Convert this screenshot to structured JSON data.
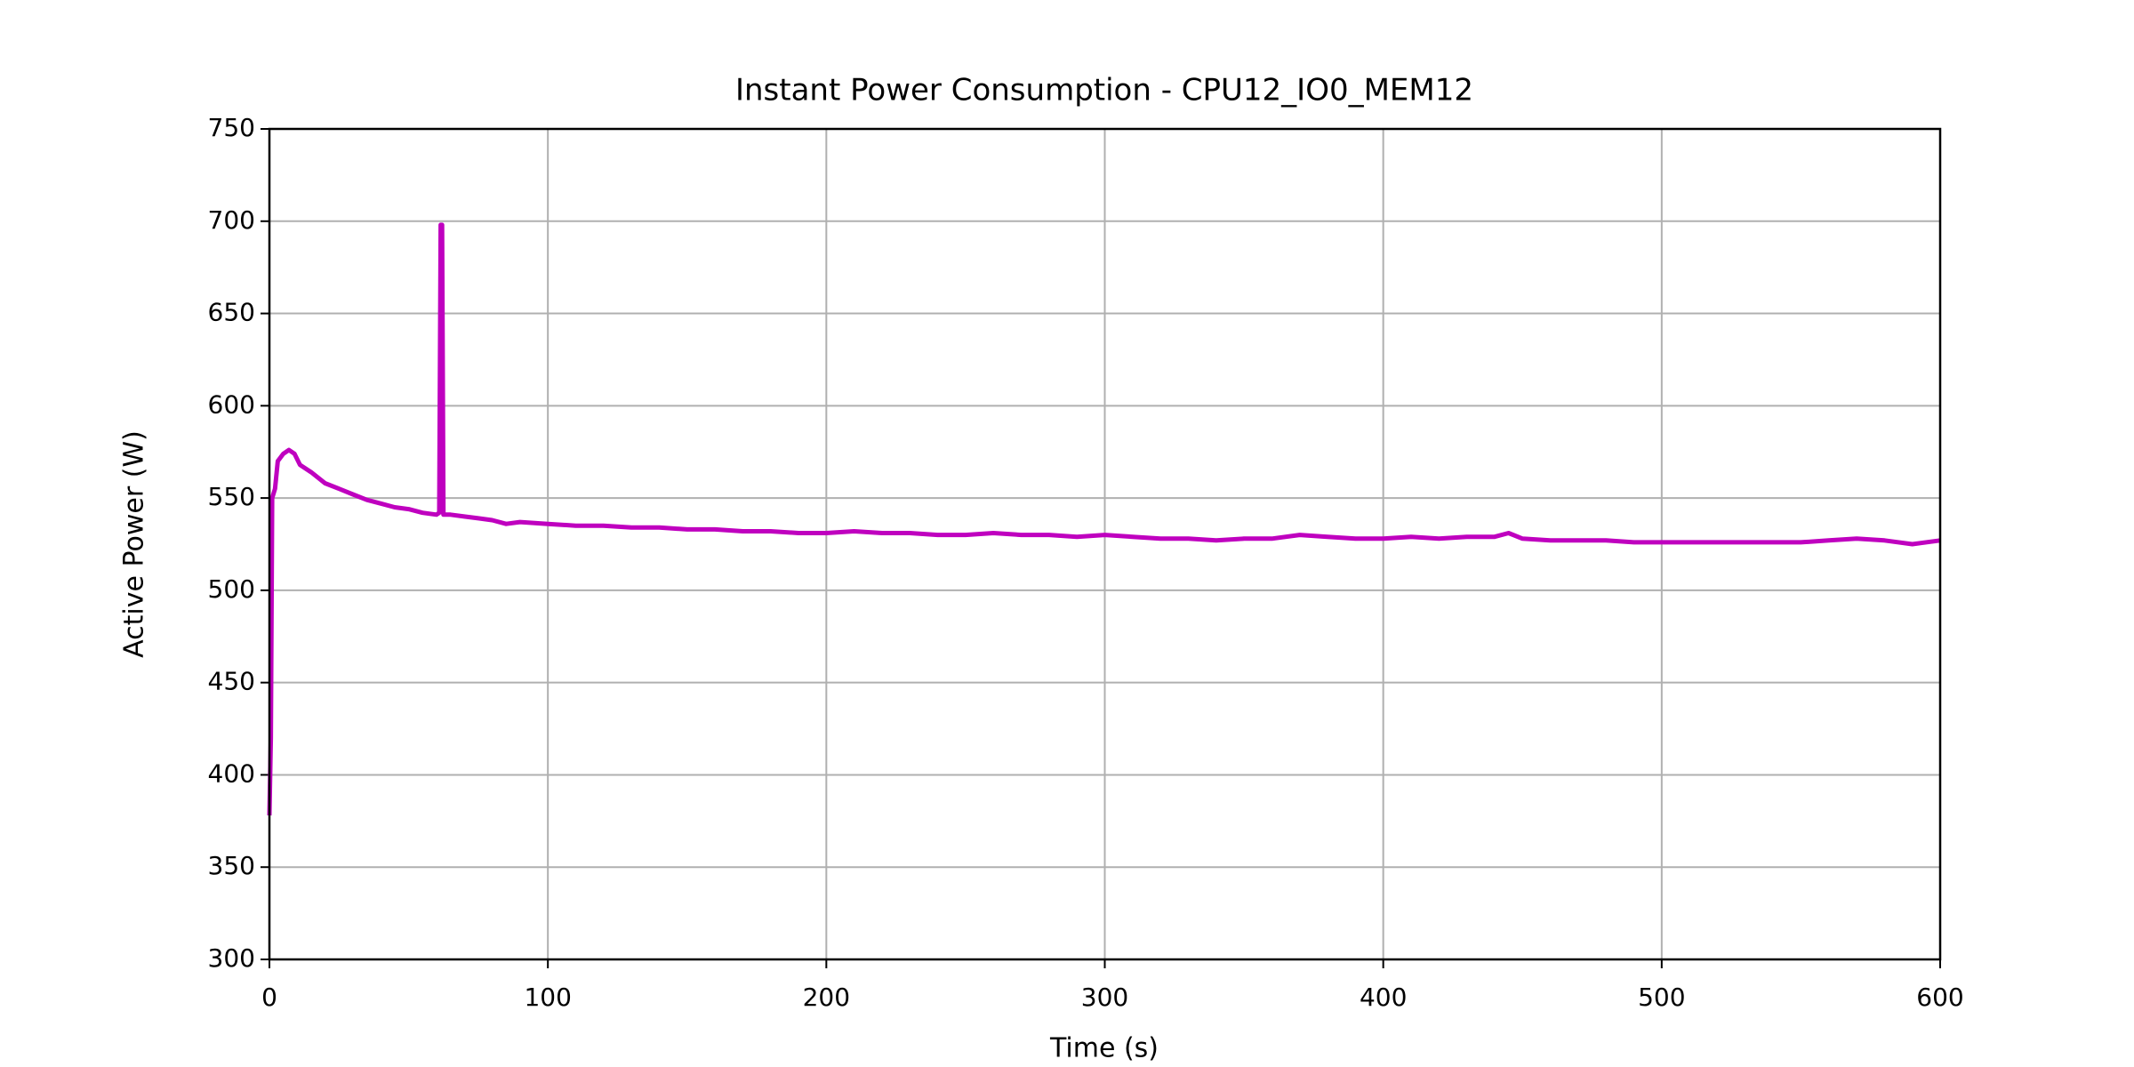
{
  "chart_data": {
    "type": "line",
    "title": "Instant Power Consumption - CPU12_IO0_MEM12",
    "xlabel": "Time (s)",
    "ylabel": "Active Power (W)",
    "x": [
      0,
      0.5,
      1,
      2,
      3,
      5,
      7,
      9,
      11,
      15,
      20,
      25,
      30,
      35,
      40,
      45,
      50,
      55,
      60,
      61,
      61.5,
      62,
      62.5,
      65,
      70,
      75,
      80,
      85,
      90,
      100,
      110,
      120,
      130,
      140,
      150,
      160,
      170,
      180,
      190,
      200,
      210,
      220,
      230,
      240,
      250,
      260,
      270,
      280,
      290,
      300,
      310,
      320,
      330,
      340,
      350,
      360,
      370,
      380,
      390,
      400,
      410,
      420,
      430,
      440,
      445,
      450,
      460,
      470,
      480,
      490,
      500,
      510,
      520,
      530,
      540,
      550,
      560,
      570,
      580,
      590,
      600
    ],
    "values": [
      378,
      420,
      550,
      555,
      570,
      574,
      576,
      574,
      568,
      564,
      558,
      555,
      552,
      549,
      547,
      545,
      544,
      542,
      541,
      542,
      698,
      698,
      541,
      541,
      540,
      539,
      538,
      536,
      537,
      536,
      535,
      535,
      534,
      534,
      533,
      533,
      532,
      532,
      531,
      531,
      532,
      531,
      531,
      530,
      530,
      531,
      530,
      530,
      529,
      530,
      529,
      528,
      528,
      527,
      528,
      528,
      530,
      529,
      528,
      528,
      529,
      528,
      529,
      529,
      531,
      528,
      527,
      527,
      527,
      526,
      526,
      526,
      526,
      526,
      526,
      526,
      527,
      528,
      527,
      525,
      527
    ],
    "color": "#bf00bf",
    "xlim": [
      0,
      600
    ],
    "xticks": [
      0,
      100,
      200,
      300,
      400,
      500,
      600
    ],
    "ylim": [
      300,
      750
    ],
    "yticks": [
      300,
      350,
      400,
      450,
      500,
      550,
      600,
      650,
      700,
      750
    ],
    "grid": true
  }
}
